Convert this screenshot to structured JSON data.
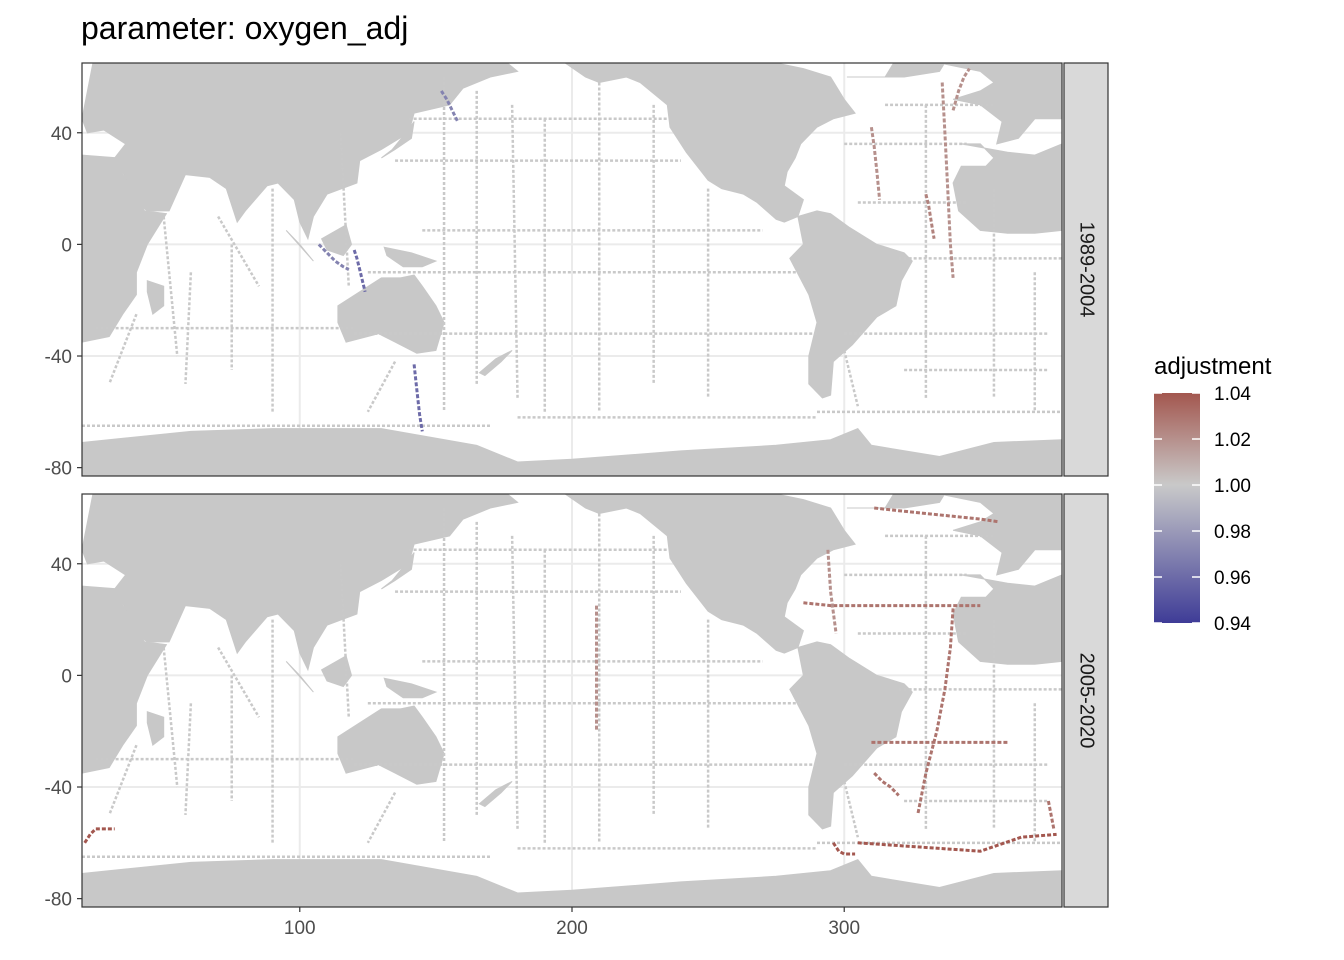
{
  "title": "parameter: oxygen_adj",
  "colors": {
    "land": "#c8c8c8",
    "ocean": "#ffffff",
    "grid": "#ebebeb",
    "strip_bg": "#d9d9d9",
    "low": "#3f3c97",
    "mid": "#c9c9c9",
    "high": "#a3574f"
  },
  "chart_data": {
    "type": "heatmap",
    "title": "parameter: oxygen_adj",
    "xlabel": "",
    "ylabel": "",
    "xlim": [
      20,
      380
    ],
    "ylim": [
      -83,
      65
    ],
    "x_ticks": [
      100,
      200,
      300
    ],
    "x_tick_labels": [
      "100",
      "200",
      "300"
    ],
    "y_ticks": [
      40,
      0,
      -40,
      -80
    ],
    "y_tick_labels": [
      "40",
      "0",
      "-40",
      "-80"
    ],
    "grid": true,
    "facets": [
      "1989-2004",
      "2005-2020"
    ],
    "legend": {
      "title": "adjustment",
      "position": "right",
      "range": [
        0.94,
        1.04
      ],
      "labels": [
        "1.04",
        "1.02",
        "1.00",
        "0.98",
        "0.96",
        "0.94"
      ]
    },
    "series": [
      {
        "facet": "1989-2004",
        "tracks": [
          {
            "lon": [
              142,
              143,
              144,
              145
            ],
            "lat": [
              -43,
              -52,
              -61,
              -67
            ],
            "value": 0.96
          },
          {
            "lon": [
              120,
              121,
              122,
              123,
              124
            ],
            "lat": [
              -2,
              -5,
              -9,
              -13,
              -17
            ],
            "value": 0.96
          },
          {
            "lon": [
              107,
              110,
              113,
              116,
              118
            ],
            "lat": [
              0,
              -3,
              -6,
              -8,
              -9
            ],
            "value": 0.97
          },
          {
            "lon": [
              152,
              154,
              156,
              158
            ],
            "lat": [
              55,
              52,
              48,
              44
            ],
            "value": 0.97
          },
          {
            "lon": [
              336,
              337,
              338,
              339,
              340
            ],
            "lat": [
              58,
              40,
              20,
              0,
              -12
            ],
            "value": 1.02
          },
          {
            "lon": [
              310,
              311,
              312,
              313
            ],
            "lat": [
              42,
              35,
              26,
              16
            ],
            "value": 1.02
          },
          {
            "lon": [
              330,
              331,
              332,
              333
            ],
            "lat": [
              18,
              14,
              8,
              2
            ],
            "value": 1.025
          },
          {
            "lon": [
              340,
              342,
              344,
              346
            ],
            "lat": [
              48,
              55,
              60,
              63
            ],
            "value": 1.02
          }
        ]
      },
      {
        "facet": "2005-2020",
        "tracks": [
          {
            "lon": [
              285,
              295,
              305,
              315,
              325,
              335,
              343,
              350
            ],
            "lat": [
              26,
              25,
              25,
              25,
              25,
              25,
              25,
              25
            ],
            "value": 1.03
          },
          {
            "lon": [
              311,
              320,
              330,
              340,
              350,
              357
            ],
            "lat": [
              60,
              59,
              58,
              57,
              56,
              55
            ],
            "value": 1.03
          },
          {
            "lon": [
              296,
              298,
              300,
              302,
              304
            ],
            "lat": [
              -60,
              -63,
              -64,
              -64,
              -64
            ],
            "value": 1.04
          },
          {
            "lon": [
              305,
              320,
              335,
              350,
              365,
              378
            ],
            "lat": [
              -60,
              -61,
              -62,
              -63,
              -58,
              -57
            ],
            "value": 1.04
          },
          {
            "lon": [
              21,
              23,
              25,
              28,
              32
            ],
            "lat": [
              -60,
              -57,
              -55,
              -55,
              -55
            ],
            "value": 1.04
          },
          {
            "lon": [
              340,
              339,
              337,
              334,
              330,
              327
            ],
            "lat": [
              24,
              10,
              -5,
              -20,
              -35,
              -50
            ],
            "value": 1.03
          },
          {
            "lon": [
              310,
              320,
              330,
              340,
              350,
              360
            ],
            "lat": [
              -24,
              -24,
              -24,
              -24,
              -24,
              -24
            ],
            "value": 1.03
          },
          {
            "lon": [
              209,
              209,
              209,
              209
            ],
            "lat": [
              25,
              10,
              -5,
              -20
            ],
            "value": 1.02
          },
          {
            "lon": [
              311,
              314,
              317,
              320
            ],
            "lat": [
              -35,
              -38,
              -40,
              -43
            ],
            "value": 1.03
          },
          {
            "lon": [
              294,
              295,
              297
            ],
            "lat": [
              45,
              30,
              15
            ],
            "value": 1.02
          },
          {
            "lon": [
              375,
              376,
              377
            ],
            "lat": [
              -45,
              -50,
              -55
            ],
            "value": 1.03
          }
        ]
      }
    ]
  }
}
